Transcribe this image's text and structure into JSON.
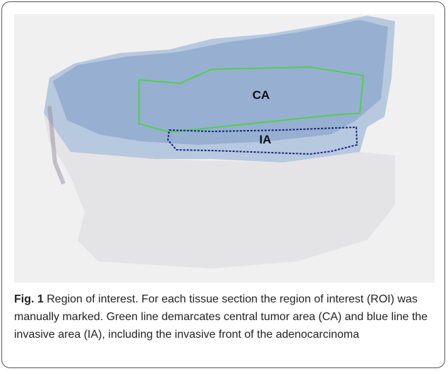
{
  "figure": {
    "labels": [
      "CA",
      "IA"
    ],
    "caption_label": "Fig. 1",
    "caption": "Region of interest. For each tissue section the region of interest (ROI) was manually marked. Green line demarcates central tumor area (CA) and blue line the invasive area (IA), including the invasive front of the adenocarcinoma"
  }
}
